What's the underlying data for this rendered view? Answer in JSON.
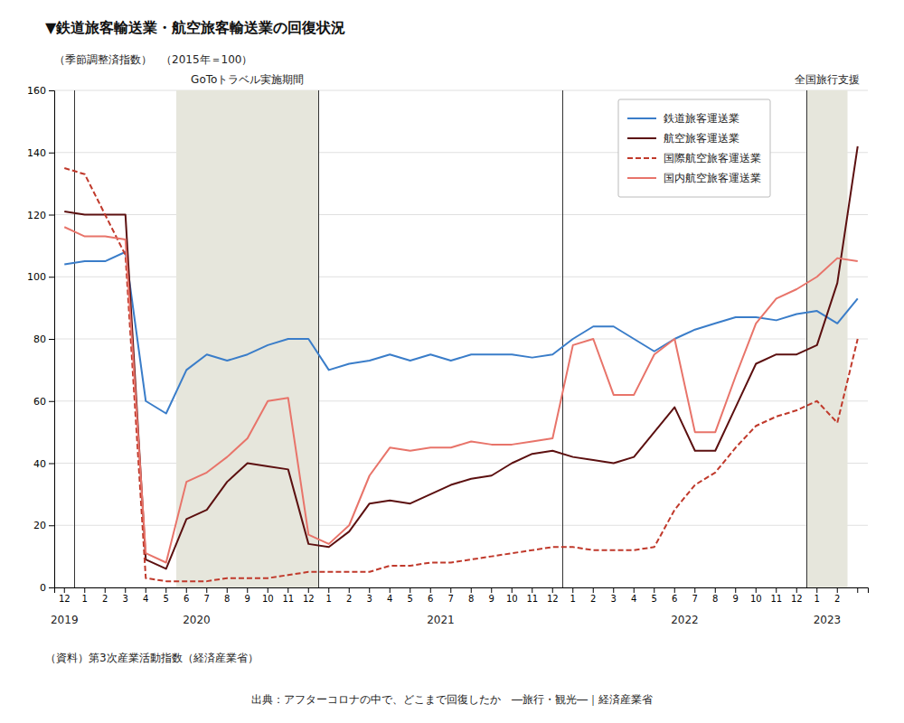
{
  "chart_data": {
    "type": "line",
    "title": "▼鉄道旅客輸送業・航空旅客輸送業の回復状況",
    "ylabel": "（季節調整済指数）",
    "ylabel_note": "（2015年＝100）",
    "source": "（資料）第3次産業活動指数（経済産業省）",
    "citation": "出典：アフターコロナの中で、どこまで回復したか　―旅行・観光―｜経済産業省",
    "categories": [
      "12",
      "1",
      "2",
      "3",
      "4",
      "5",
      "6",
      "7",
      "8",
      "9",
      "10",
      "11",
      "12",
      "1",
      "2",
      "3",
      "4",
      "5",
      "6",
      "7",
      "8",
      "9",
      "10",
      "11",
      "12",
      "1",
      "2",
      "3",
      "4",
      "5",
      "6",
      "7",
      "8",
      "9",
      "10",
      "11",
      "12",
      "1",
      "2",
      null
    ],
    "x_groups": [
      {
        "label": "2019",
        "from": 0,
        "to": 0
      },
      {
        "label": "2020",
        "from": 1,
        "to": 12
      },
      {
        "label": "2021",
        "from": 13,
        "to": 24
      },
      {
        "label": "2022",
        "from": 25,
        "to": 36
      },
      {
        "label": "2023",
        "from": 37,
        "to": 38
      }
    ],
    "spans": [
      {
        "label": "GoToトラベル実施期間",
        "from": 6,
        "to": 12
      },
      {
        "label": "全国旅行支援",
        "from": 37,
        "to": 38
      }
    ],
    "series": [
      {
        "name": "鉄道旅客運送業",
        "color": "#3A7DC9",
        "line_style": "solid",
        "values": [
          104,
          105,
          105,
          108,
          60,
          56,
          70,
          75,
          73,
          75,
          78,
          80,
          80,
          70,
          72,
          73,
          75,
          73,
          75,
          73,
          75,
          75,
          75,
          74,
          75,
          80,
          84,
          84,
          80,
          76,
          80,
          83,
          85,
          87,
          87,
          86,
          88,
          89,
          85,
          93
        ]
      },
      {
        "name": "航空旅客運送業",
        "color": "#5C1010",
        "line_style": "solid",
        "values": [
          121,
          120,
          120,
          120,
          9,
          6,
          22,
          25,
          34,
          40,
          39,
          38,
          14,
          13,
          18,
          27,
          28,
          27,
          30,
          33,
          35,
          36,
          40,
          43,
          44,
          42,
          41,
          40,
          42,
          50,
          58,
          44,
          44,
          58,
          72,
          75,
          75,
          78,
          98,
          142
        ]
      },
      {
        "name": "国際航空旅客運送業",
        "color": "#C0392B",
        "line_style": "dashed",
        "values": [
          135,
          133,
          120,
          107,
          3,
          2,
          2,
          2,
          3,
          3,
          3,
          4,
          5,
          5,
          5,
          5,
          7,
          7,
          8,
          8,
          9,
          10,
          11,
          12,
          13,
          13,
          12,
          12,
          12,
          13,
          25,
          33,
          37,
          45,
          52,
          55,
          57,
          60,
          53,
          80
        ]
      },
      {
        "name": "国内航空旅客運送業",
        "color": "#E8746A",
        "line_style": "solid",
        "values": [
          116,
          113,
          113,
          112,
          11,
          8,
          34,
          37,
          42,
          48,
          60,
          61,
          17,
          14,
          20,
          36,
          45,
          44,
          45,
          45,
          47,
          46,
          46,
          47,
          48,
          78,
          80,
          62,
          62,
          75,
          80,
          50,
          50,
          68,
          85,
          93,
          96,
          100,
          106,
          105
        ]
      }
    ],
    "ylim": [
      0,
      160
    ],
    "yticks": [
      0,
      20,
      40,
      60,
      80,
      100,
      120,
      140,
      160
    ],
    "grid": true,
    "legend": "upper right"
  }
}
